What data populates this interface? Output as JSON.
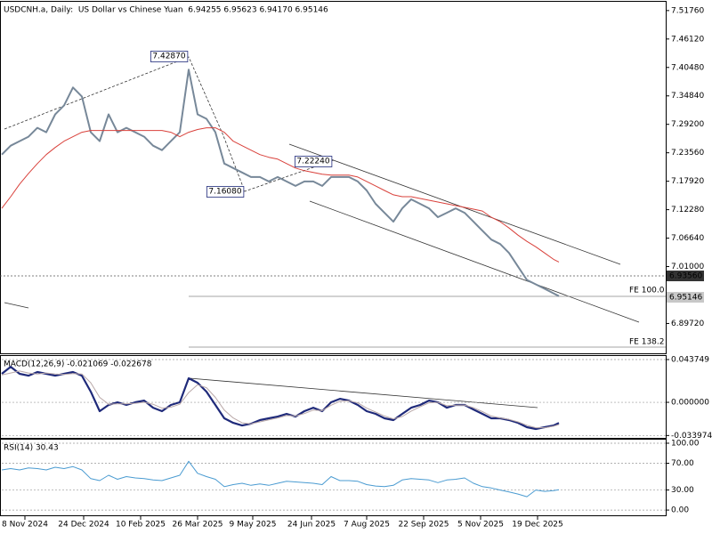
{
  "chart_data": [
    {
      "type": "line",
      "title": "USDCNH.a, Daily:  US Dollar vs Chinese Yuan  6.94255 6.95623 6.94170 6.95146",
      "x": [
        0,
        5,
        10,
        15,
        20,
        25,
        30,
        35,
        40,
        45,
        50,
        55,
        60,
        65,
        70,
        75,
        80,
        85,
        90,
        95,
        100,
        105,
        110,
        115,
        120,
        125,
        130,
        135,
        140,
        145,
        150,
        155,
        160,
        165,
        170,
        175,
        180,
        185,
        190,
        195,
        200,
        205,
        210,
        215,
        220,
        225,
        230,
        235,
        240,
        245,
        250,
        255,
        260,
        265,
        270,
        275,
        280,
        285,
        290,
        295,
        300,
        305,
        310,
        313
      ],
      "series": [
        {
          "name": "Close",
          "color": "#778899",
          "values": [
            7.232,
            7.2497,
            7.2586,
            7.2675,
            7.2852,
            7.2763,
            7.3118,
            7.3296,
            7.365,
            7.3473,
            7.2763,
            7.2586,
            7.3118,
            7.2763,
            7.2852,
            7.2763,
            7.2675,
            7.2497,
            7.2409,
            7.2586,
            7.2763,
            7.4005,
            7.3118,
            7.3029,
            7.2763,
            7.2142,
            7.2054,
            7.1965,
            7.1876,
            7.1876,
            7.1788,
            7.1876,
            7.1788,
            7.1699,
            7.1788,
            7.1788,
            7.1699,
            7.1876,
            7.1876,
            7.1876,
            7.1788,
            7.161,
            7.1344,
            7.1167,
            7.0989,
            7.1255,
            7.1433,
            7.1344,
            7.1255,
            7.1079,
            7.1167,
            7.1255,
            7.1167,
            7.0989,
            7.0812,
            7.0635,
            7.0546,
            7.0368,
            7.0102,
            6.9836,
            6.9748,
            6.9659,
            6.957,
            6.95146
          ]
        },
        {
          "name": "MA",
          "color": "#d9413b",
          "values": [
            7.1255,
            7.1486,
            7.1734,
            7.1947,
            7.2142,
            7.232,
            7.2462,
            7.2586,
            7.2675,
            7.2763,
            7.2799,
            7.2799,
            7.2799,
            7.2799,
            7.2799,
            7.2799,
            7.2799,
            7.2799,
            7.2799,
            7.2763,
            7.2675,
            7.2763,
            7.2817,
            7.2852,
            7.2852,
            7.2763,
            7.2586,
            7.2497,
            7.2409,
            7.232,
            7.2267,
            7.2231,
            7.2142,
            7.2054,
            7.2001,
            7.1965,
            7.193,
            7.1912,
            7.1912,
            7.1912,
            7.1876,
            7.1788,
            7.1699,
            7.161,
            7.1522,
            7.1486,
            7.1486,
            7.1451,
            7.1415,
            7.138,
            7.1344,
            7.1309,
            7.1273,
            7.1238,
            7.1202,
            7.1078,
            7.0989,
            7.0865,
            7.0723,
            7.0599,
            7.0492,
            7.0368,
            7.0244,
            7.0191
          ]
        }
      ],
      "xlim": [
        0,
        373
      ],
      "ylim": [
        6.838,
        7.535
      ],
      "yticks": [
        {
          "value": 7.5176,
          "label": "7.51760"
        },
        {
          "value": 7.4612,
          "label": "7.46120"
        },
        {
          "value": 7.4048,
          "label": "7.40480"
        },
        {
          "value": 7.3484,
          "label": "7.34840"
        },
        {
          "value": 7.292,
          "label": "7.29200"
        },
        {
          "value": 7.2356,
          "label": "7.23560"
        },
        {
          "value": 7.1792,
          "label": "7.17920"
        },
        {
          "value": 7.1228,
          "label": "7.12280"
        },
        {
          "value": 7.0664,
          "label": "7.06640"
        },
        {
          "value": 7.01,
          "label": "7.01000"
        },
        {
          "value": 6.8972,
          "label": "6.89720"
        }
      ],
      "grid": false,
      "annotations": [
        "7.42870",
        "7.22240",
        "7.16080",
        "FE 100.0",
        "FE 138.2"
      ],
      "price_labels": [
        "6.93560",
        "6.95146"
      ]
    },
    {
      "type": "line",
      "title": "MACD(12,26,9) -0.021069 -0.022678",
      "x": [
        0,
        5,
        10,
        15,
        20,
        25,
        30,
        35,
        40,
        45,
        50,
        55,
        60,
        65,
        70,
        75,
        80,
        85,
        90,
        95,
        100,
        105,
        110,
        115,
        120,
        125,
        130,
        135,
        140,
        145,
        150,
        155,
        160,
        165,
        170,
        175,
        180,
        185,
        190,
        195,
        200,
        205,
        210,
        215,
        220,
        225,
        230,
        235,
        240,
        245,
        250,
        255,
        260,
        265,
        270,
        275,
        280,
        285,
        290,
        295,
        300,
        305,
        310,
        313
      ],
      "series": [
        {
          "name": "MACD",
          "color": "#1f2a7a",
          "values": [
            0.0292,
            0.0364,
            0.0292,
            0.0273,
            0.031,
            0.0292,
            0.0273,
            0.0292,
            0.031,
            0.0273,
            0.0109,
            -0.0091,
            -0.0027,
            0,
            -0.0027,
            0,
            0.0018,
            -0.0055,
            -0.0091,
            -0.0027,
            0,
            0.0246,
            0.02,
            0.0109,
            -0.0027,
            -0.0164,
            -0.021,
            -0.0237,
            -0.0219,
            -0.0182,
            -0.0164,
            -0.0146,
            -0.0118,
            -0.0146,
            -0.0091,
            -0.0055,
            -0.0091,
            0,
            0.0036,
            0.0018,
            -0.0027,
            -0.0091,
            -0.0118,
            -0.0164,
            -0.0182,
            -0.0118,
            -0.0055,
            -0.0027,
            0.0018,
            0,
            -0.0055,
            -0.0027,
            -0.0027,
            -0.0073,
            -0.0118,
            -0.0164,
            -0.0164,
            -0.0182,
            -0.021,
            -0.0255,
            -0.0273,
            -0.0255,
            -0.0237,
            -0.0211
          ]
        },
        {
          "name": "Signal",
          "color": "#b9a8a8",
          "values": [
            0.028,
            0.03,
            0.032,
            0.03,
            0.029,
            0.03,
            0.029,
            0.0285,
            0.0295,
            0.029,
            0.02,
            0.005,
            -0.002,
            -0.0015,
            -0.0015,
            -0.001,
            0.0,
            -0.002,
            -0.006,
            -0.005,
            -0.002,
            0.01,
            0.018,
            0.015,
            0.005,
            -0.008,
            -0.016,
            -0.021,
            -0.022,
            -0.02,
            -0.018,
            -0.016,
            -0.0135,
            -0.014,
            -0.0115,
            -0.008,
            -0.0085,
            -0.003,
            0.001,
            0.0015,
            -0.0005,
            -0.006,
            -0.01,
            -0.014,
            -0.017,
            -0.0145,
            -0.009,
            -0.0045,
            -0.0005,
            0.0,
            -0.0035,
            -0.003,
            -0.0028,
            -0.0055,
            -0.0095,
            -0.014,
            -0.016,
            -0.0175,
            -0.02,
            -0.0235,
            -0.026,
            -0.026,
            -0.0245,
            -0.0227
          ]
        }
      ],
      "xlim": [
        0,
        373
      ],
      "ylim": [
        -0.0364,
        0.0474
      ],
      "yticks": [
        0.043749,
        {
          "value": 0,
          "label": "0.000000"
        },
        -0.033974
      ],
      "grid": true
    },
    {
      "type": "line",
      "title": "RSI(14) 30.43",
      "x": [
        0,
        5,
        10,
        15,
        20,
        25,
        30,
        35,
        40,
        45,
        50,
        55,
        60,
        65,
        70,
        75,
        80,
        85,
        90,
        95,
        100,
        105,
        110,
        115,
        120,
        125,
        130,
        135,
        140,
        145,
        150,
        155,
        160,
        165,
        170,
        175,
        180,
        185,
        190,
        195,
        200,
        205,
        210,
        215,
        220,
        225,
        230,
        235,
        240,
        245,
        250,
        255,
        260,
        265,
        270,
        275,
        280,
        285,
        290,
        295,
        300,
        305,
        310,
        313
      ],
      "series": [
        {
          "name": "RSI",
          "color": "#4a9bd1",
          "values": [
            60,
            62,
            60,
            63,
            62,
            60,
            64,
            62,
            65,
            60,
            47,
            44,
            52,
            46,
            50,
            48,
            47,
            45,
            44,
            48,
            52,
            73,
            55,
            50,
            46,
            35,
            38,
            40,
            37,
            39,
            37,
            40,
            43,
            42,
            41,
            40,
            38,
            50,
            44,
            44,
            43,
            38,
            36,
            35,
            37,
            45,
            47,
            46,
            45,
            41,
            45,
            46,
            48,
            40,
            35,
            33,
            30,
            27,
            24,
            20,
            30,
            28,
            29,
            30.43
          ]
        }
      ],
      "xlim": [
        0,
        373
      ],
      "ylim": [
        -9.2,
        105.3
      ],
      "yticks": [
        {
          "value": 100,
          "label": "100.00"
        },
        {
          "value": 70,
          "label": "70.00"
        },
        {
          "value": 30,
          "label": "30.00"
        },
        {
          "value": 0,
          "label": "0.00"
        }
      ],
      "grid": true,
      "xticks": [
        {
          "value": 13,
          "label": "8 Nov 2024"
        },
        {
          "value": 46,
          "label": "24 Dec 2024"
        },
        {
          "value": 78,
          "label": "10 Feb 2025"
        },
        {
          "value": 110,
          "label": "26 Mar 2025"
        },
        {
          "value": 141,
          "label": "9 May 2025"
        },
        {
          "value": 174,
          "label": "24 Jun 2025"
        },
        {
          "value": 205,
          "label": "7 Aug 2025"
        },
        {
          "value": 237,
          "label": "22 Sep 2025"
        },
        {
          "value": 269,
          "label": "5 Nov 2025"
        },
        {
          "value": 301,
          "label": "19 Dec 2025"
        }
      ]
    }
  ]
}
